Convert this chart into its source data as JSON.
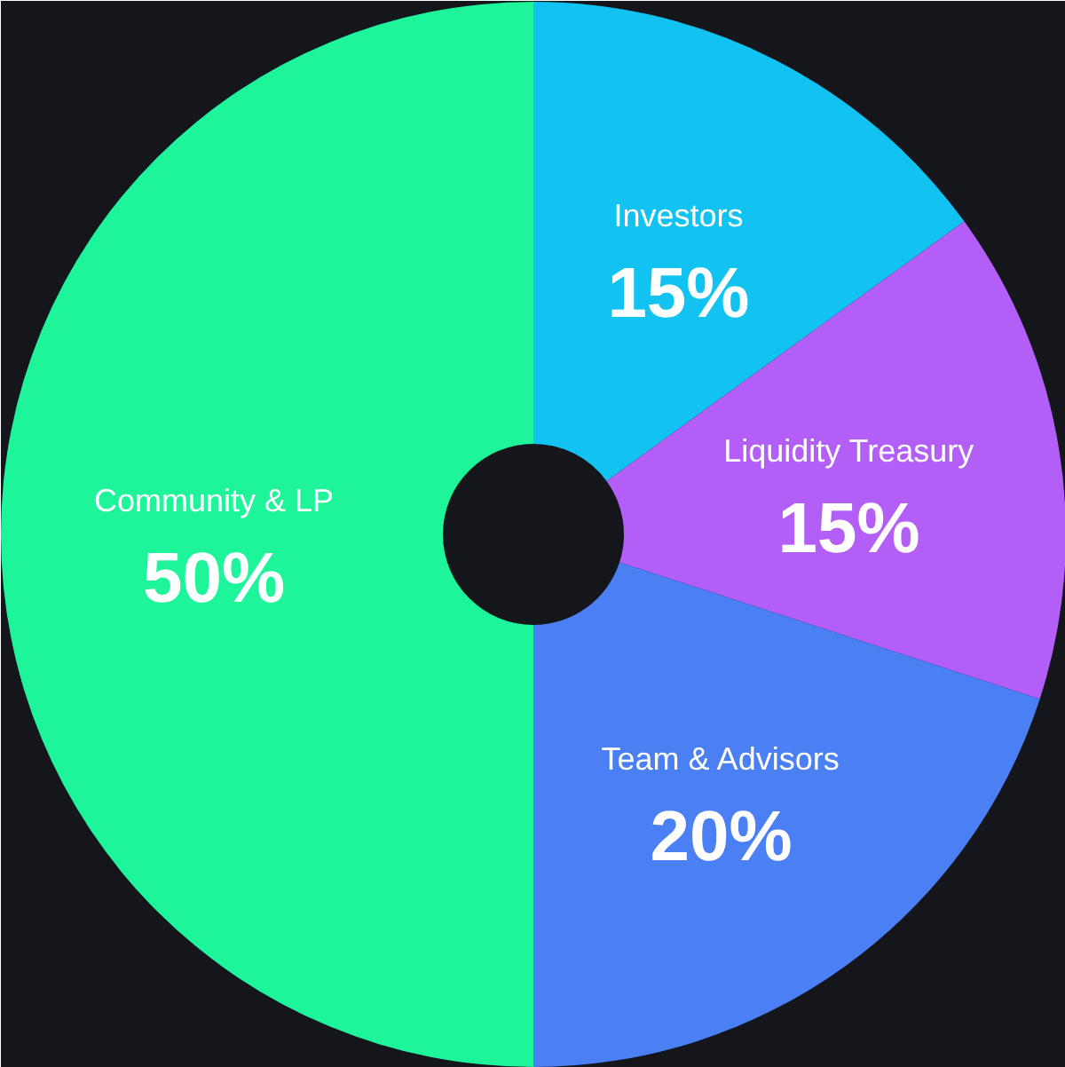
{
  "chart_data": {
    "type": "donut",
    "categories": [
      "Investors",
      "Liquidity Treasury",
      "Team & Advisors",
      "Community & LP"
    ],
    "values": [
      15,
      15,
      20,
      50
    ],
    "colors": [
      "#12c3f2",
      "#b35ef7",
      "#4b7ff4",
      "#1ef59a"
    ],
    "value_labels": [
      "15%",
      "15%",
      "20%",
      "50%"
    ]
  }
}
